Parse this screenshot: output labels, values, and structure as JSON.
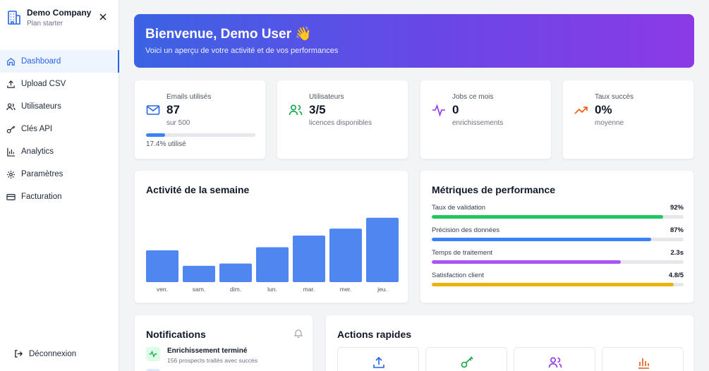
{
  "brand": {
    "name": "Demo Company",
    "plan": "Plan starter"
  },
  "nav": [
    {
      "label": "Dashboard",
      "icon": "home-icon",
      "active": true
    },
    {
      "label": "Upload CSV",
      "icon": "upload-icon"
    },
    {
      "label": "Utilisateurs",
      "icon": "users-icon"
    },
    {
      "label": "Clés API",
      "icon": "key-icon"
    },
    {
      "label": "Analytics",
      "icon": "bar-chart-icon"
    },
    {
      "label": "Paramètres",
      "icon": "gear-icon"
    },
    {
      "label": "Facturation",
      "icon": "credit-card-icon"
    }
  ],
  "logout": {
    "label": "Déconnexion"
  },
  "hero": {
    "title": "Bienvenue, Demo User 👋",
    "subtitle": "Voici un aperçu de votre activité et de vos performances"
  },
  "stats": {
    "emails": {
      "label": "Emails utilisés",
      "value": "87",
      "sub": "sur 500",
      "progress_percent": 17.4,
      "progress_text": "17.4% utilisé",
      "icon": "mail-icon"
    },
    "users": {
      "label": "Utilisateurs",
      "value": "3/5",
      "sub": "licences disponibles",
      "icon": "users-icon"
    },
    "jobs": {
      "label": "Jobs ce mois",
      "value": "0",
      "sub": "enrichissements",
      "icon": "activity-icon"
    },
    "success": {
      "label": "Taux succès",
      "value": "0%",
      "sub": "moyenne",
      "icon": "trending-up-icon"
    }
  },
  "activity": {
    "title": "Activité de la semaine"
  },
  "chart_data": {
    "type": "bar",
    "categories": [
      "ven.",
      "sam.",
      "dim.",
      "lun.",
      "mar.",
      "mer.",
      "jeu."
    ],
    "values": [
      41,
      21,
      24,
      45,
      60,
      69,
      83
    ],
    "ylim": [
      0,
      100
    ],
    "color": "#4f86f0"
  },
  "metrics": {
    "title": "Métriques de performance",
    "items": [
      {
        "label": "Taux de validation",
        "value": "92%",
        "fill": 0.92,
        "color": "#22c55e"
      },
      {
        "label": "Précision des données",
        "value": "87%",
        "fill": 0.87,
        "color": "#3b82f6"
      },
      {
        "label": "Temps de traitement",
        "value": "2.3s",
        "fill": 0.75,
        "color": "#a855f7"
      },
      {
        "label": "Satisfaction client",
        "value": "4.8/5",
        "fill": 0.96,
        "color": "#eab308"
      }
    ]
  },
  "notifications": {
    "title": "Notifications",
    "items": [
      {
        "title": "Enrichissement terminé",
        "desc": "156 prospects traités avec succès"
      }
    ]
  },
  "quick_actions": {
    "title": "Actions rapides",
    "items": [
      {
        "icon": "upload-icon",
        "color": "#2563eb"
      },
      {
        "icon": "key-icon",
        "color": "#16a34a"
      },
      {
        "icon": "users-icon",
        "color": "#9333ea"
      },
      {
        "icon": "bar-chart-icon",
        "color": "#ea580c"
      }
    ]
  }
}
